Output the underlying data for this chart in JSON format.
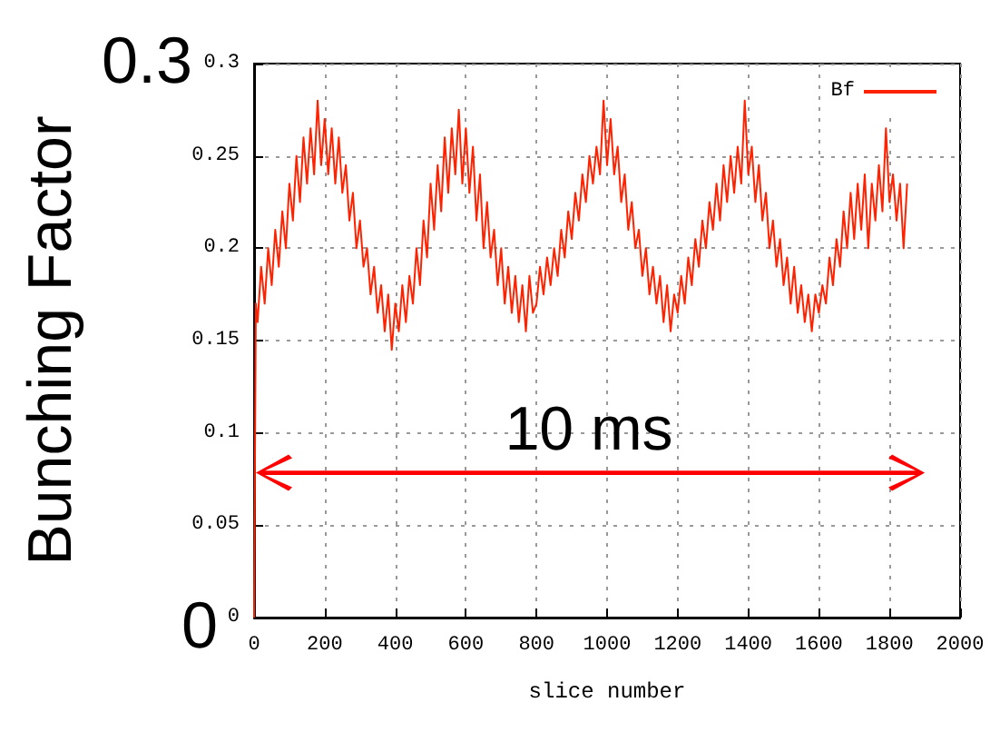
{
  "chart_data": {
    "type": "line",
    "xlabel": "slice number",
    "ylabel": "Bunching Factor",
    "annotations": [
      "0.3",
      "0",
      "10 ms"
    ],
    "xlim": [
      0,
      2000
    ],
    "xticks": [
      0,
      200,
      400,
      600,
      800,
      1000,
      1200,
      1400,
      1600,
      1800,
      2000
    ],
    "ylim": [
      0,
      0.3
    ],
    "yticks": [
      0,
      0.05,
      0.1,
      0.15,
      0.2,
      0.25,
      0.3
    ],
    "grid": true,
    "legend": "top right",
    "marker": "none",
    "line_style": "solid",
    "series": [
      {
        "name": "Bf",
        "color": "#ff2200",
        "x": [
          0,
          5,
          10,
          20,
          30,
          40,
          50,
          60,
          70,
          80,
          90,
          100,
          110,
          120,
          130,
          140,
          150,
          160,
          170,
          180,
          190,
          200,
          210,
          220,
          230,
          240,
          250,
          260,
          270,
          280,
          290,
          300,
          310,
          320,
          330,
          340,
          350,
          360,
          370,
          380,
          390,
          400,
          410,
          420,
          430,
          440,
          450,
          460,
          470,
          480,
          490,
          500,
          510,
          520,
          530,
          540,
          550,
          560,
          570,
          580,
          590,
          600,
          610,
          620,
          630,
          640,
          650,
          660,
          670,
          680,
          690,
          700,
          710,
          720,
          730,
          740,
          750,
          760,
          770,
          780,
          790,
          800,
          810,
          820,
          830,
          840,
          850,
          860,
          870,
          880,
          890,
          900,
          910,
          920,
          930,
          940,
          950,
          960,
          970,
          980,
          990,
          1000,
          1010,
          1020,
          1030,
          1040,
          1050,
          1060,
          1070,
          1080,
          1090,
          1100,
          1110,
          1120,
          1130,
          1140,
          1150,
          1160,
          1170,
          1180,
          1190,
          1200,
          1210,
          1220,
          1230,
          1240,
          1250,
          1260,
          1270,
          1280,
          1290,
          1300,
          1310,
          1320,
          1330,
          1340,
          1350,
          1360,
          1370,
          1380,
          1390,
          1400,
          1410,
          1420,
          1430,
          1440,
          1450,
          1460,
          1470,
          1480,
          1490,
          1500,
          1510,
          1520,
          1530,
          1540,
          1550,
          1560,
          1570,
          1580,
          1590,
          1600,
          1610,
          1620,
          1630,
          1640,
          1650,
          1660,
          1670,
          1680,
          1690,
          1700,
          1710,
          1720,
          1730,
          1740,
          1750,
          1760,
          1770,
          1780,
          1790,
          1800,
          1810,
          1820,
          1830,
          1840,
          1850
        ],
        "values": [
          0,
          0.17,
          0.16,
          0.19,
          0.17,
          0.2,
          0.18,
          0.21,
          0.19,
          0.22,
          0.2,
          0.235,
          0.215,
          0.25,
          0.225,
          0.26,
          0.235,
          0.265,
          0.24,
          0.28,
          0.245,
          0.27,
          0.24,
          0.265,
          0.235,
          0.26,
          0.23,
          0.245,
          0.215,
          0.23,
          0.2,
          0.215,
          0.19,
          0.2,
          0.175,
          0.19,
          0.165,
          0.18,
          0.155,
          0.175,
          0.145,
          0.17,
          0.155,
          0.18,
          0.16,
          0.185,
          0.17,
          0.2,
          0.18,
          0.215,
          0.195,
          0.235,
          0.21,
          0.245,
          0.22,
          0.26,
          0.23,
          0.265,
          0.24,
          0.275,
          0.235,
          0.265,
          0.23,
          0.255,
          0.215,
          0.24,
          0.2,
          0.225,
          0.195,
          0.21,
          0.18,
          0.2,
          0.17,
          0.19,
          0.165,
          0.185,
          0.16,
          0.18,
          0.155,
          0.185,
          0.165,
          0.17,
          0.19,
          0.175,
          0.195,
          0.18,
          0.2,
          0.185,
          0.21,
          0.195,
          0.22,
          0.205,
          0.23,
          0.215,
          0.24,
          0.225,
          0.25,
          0.235,
          0.255,
          0.24,
          0.28,
          0.245,
          0.27,
          0.24,
          0.255,
          0.225,
          0.24,
          0.21,
          0.225,
          0.2,
          0.21,
          0.185,
          0.2,
          0.175,
          0.19,
          0.17,
          0.185,
          0.16,
          0.18,
          0.155,
          0.175,
          0.165,
          0.185,
          0.17,
          0.195,
          0.18,
          0.205,
          0.19,
          0.215,
          0.2,
          0.225,
          0.21,
          0.235,
          0.215,
          0.245,
          0.225,
          0.25,
          0.23,
          0.255,
          0.235,
          0.28,
          0.24,
          0.255,
          0.225,
          0.245,
          0.215,
          0.23,
          0.2,
          0.215,
          0.19,
          0.205,
          0.18,
          0.195,
          0.17,
          0.19,
          0.165,
          0.18,
          0.16,
          0.175,
          0.155,
          0.175,
          0.165,
          0.18,
          0.17,
          0.195,
          0.18,
          0.205,
          0.19,
          0.22,
          0.2,
          0.23,
          0.205,
          0.235,
          0.21,
          0.24,
          0.2,
          0.235,
          0.215,
          0.245,
          0.22,
          0.265,
          0.225,
          0.24,
          0.215,
          0.235,
          0.2,
          0.235
        ]
      }
    ]
  }
}
